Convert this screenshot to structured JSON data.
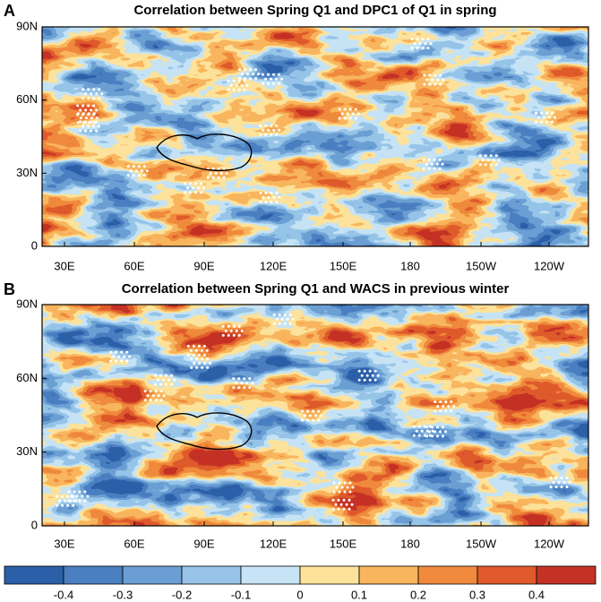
{
  "panels": [
    {
      "label": "A",
      "title": "Correlation between Spring Q1 and DPC1 of Q1 in spring"
    },
    {
      "label": "B",
      "title": "Correlation between Spring Q1 and WACS in previous winter"
    }
  ],
  "lat_labels": [
    "90N",
    "60N",
    "30N",
    "0"
  ],
  "lon_labels": [
    "30E",
    "60E",
    "90E",
    "120E",
    "150E",
    "180",
    "150W",
    "120W"
  ],
  "colorbar": {
    "colors": [
      "#2b5fa8",
      "#4a7fc1",
      "#6b9fd4",
      "#97c4e8",
      "#c6e4f5",
      "#fde39a",
      "#f9b55d",
      "#f08a3c",
      "#e05a2b",
      "#c43225"
    ],
    "ticks": [
      -0.4,
      -0.3,
      -0.2,
      -0.1,
      0,
      0.1,
      0.2,
      0.3,
      0.4
    ]
  }
}
